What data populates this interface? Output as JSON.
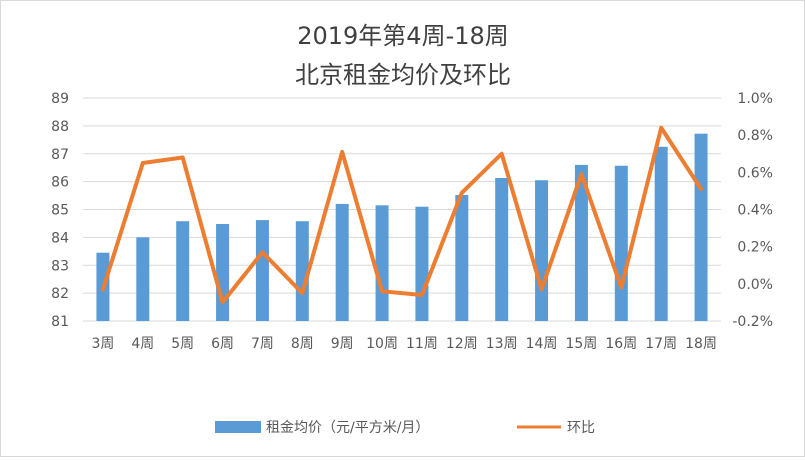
{
  "chart_data": {
    "type": "bar",
    "title_line1": "2019年第4周-18周",
    "title_line2": "北京租金均价及环比",
    "categories": [
      "3周",
      "4周",
      "5周",
      "6周",
      "7周",
      "8周",
      "9周",
      "10周",
      "11周",
      "12周",
      "13周",
      "14周",
      "15周",
      "16周",
      "17周",
      "18周"
    ],
    "series": [
      {
        "name": "租金均价（元/平方米/月）",
        "type": "bar",
        "axis": "left",
        "color": "#5b9bd5",
        "values": [
          83.45,
          84.0,
          84.58,
          84.48,
          84.62,
          84.58,
          85.2,
          85.15,
          85.1,
          85.52,
          86.13,
          86.05,
          86.6,
          86.57,
          87.25,
          87.72
        ]
      },
      {
        "name": "环比",
        "type": "line",
        "axis": "right",
        "color": "#ed7d31",
        "values": [
          -0.0003,
          0.0065,
          0.0068,
          -0.001,
          0.0017,
          -0.0005,
          0.0071,
          -0.0004,
          -0.0006,
          0.0049,
          0.007,
          -0.0003,
          0.0059,
          -0.0002,
          0.0084,
          0.0051
        ]
      }
    ],
    "y_left": {
      "ylim": [
        81,
        89
      ],
      "ticks": [
        "81",
        "82",
        "83",
        "84",
        "85",
        "86",
        "87",
        "88",
        "89"
      ]
    },
    "y_right": {
      "ylim": [
        -0.002,
        0.01
      ],
      "ticks": [
        "-0.2%",
        "0.0%",
        "0.2%",
        "0.4%",
        "0.6%",
        "0.8%",
        "1.0%"
      ]
    },
    "grid": true,
    "legend_position": "bottom"
  }
}
